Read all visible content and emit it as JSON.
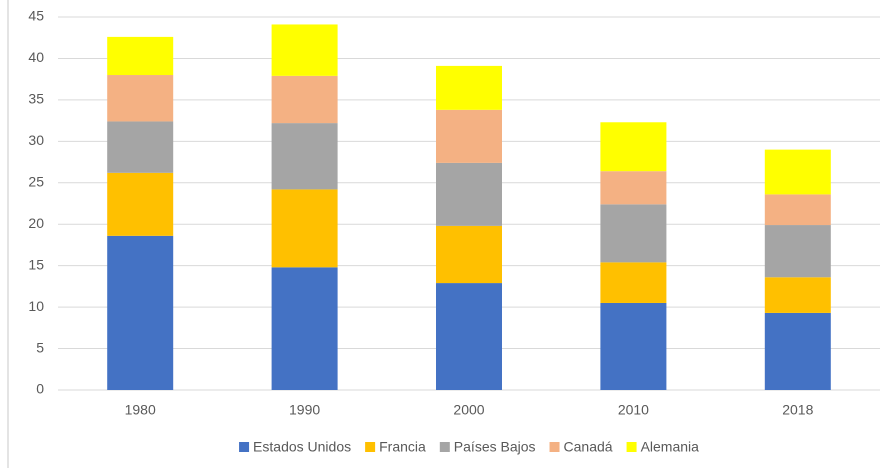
{
  "chart_data": {
    "type": "stacked_bar",
    "categories": [
      "1980",
      "1990",
      "2000",
      "2010",
      "2018"
    ],
    "series": [
      {
        "name": "Estados Unidos",
        "color": "#4472c4",
        "values": [
          18.6,
          14.8,
          12.9,
          10.5,
          9.3
        ]
      },
      {
        "name": "Francia",
        "color": "#ffc000",
        "values": [
          7.6,
          9.4,
          6.9,
          4.9,
          4.3
        ]
      },
      {
        "name": "Países Bajos",
        "color": "#a5a5a5",
        "values": [
          6.2,
          8.0,
          7.6,
          7.0,
          6.3
        ]
      },
      {
        "name": "Canadá",
        "color": "#f4b183",
        "values": [
          5.6,
          5.7,
          6.4,
          4.0,
          3.7
        ]
      },
      {
        "name": "Alemania",
        "color": "#ffff00",
        "values": [
          4.6,
          6.2,
          5.3,
          5.9,
          5.4
        ]
      }
    ],
    "ylim": [
      0,
      45
    ],
    "yticks": [
      0,
      5,
      10,
      15,
      20,
      25,
      30,
      35,
      40,
      45
    ],
    "grid": true,
    "legend": "bottom"
  }
}
